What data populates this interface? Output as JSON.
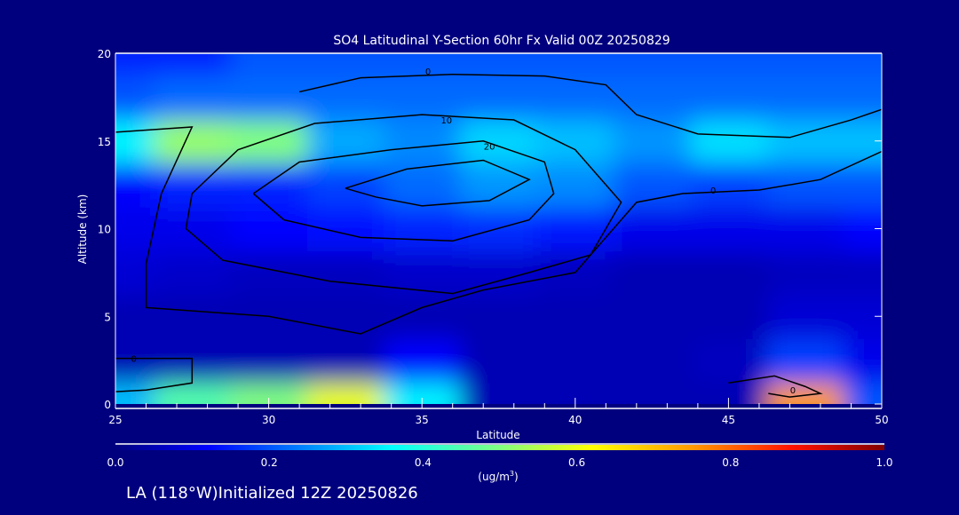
{
  "chart_data": {
    "type": "heatmap",
    "title": "SO4 Latitudinal Y-Section 60hr  Fx Valid 00Z 20250829",
    "xlabel": "Latitude",
    "ylabel": "Altitude (km)",
    "xlim": [
      25,
      50
    ],
    "ylim": [
      0,
      20
    ],
    "xticks": [
      "25",
      "30",
      "35",
      "40",
      "45",
      "50"
    ],
    "yticks": [
      "0",
      "5",
      "10",
      "15",
      "20"
    ],
    "x": [
      25,
      27.5,
      30,
      32.5,
      35,
      37.5,
      40,
      42.5,
      45,
      47.5,
      50
    ],
    "y": [
      0,
      2.5,
      5,
      7.5,
      10,
      12.5,
      15,
      17.5,
      20
    ],
    "z": [
      [
        0.3,
        0.45,
        0.5,
        0.6,
        0.35,
        0.05,
        0.05,
        0.05,
        0.05,
        0.75,
        0.2
      ],
      [
        0.05,
        0.05,
        0.05,
        0.05,
        0.12,
        0.05,
        0.05,
        0.05,
        0.06,
        0.18,
        0.1
      ],
      [
        0.05,
        0.05,
        0.05,
        0.05,
        0.05,
        0.05,
        0.05,
        0.05,
        0.05,
        0.08,
        0.08
      ],
      [
        0.08,
        0.07,
        0.06,
        0.06,
        0.07,
        0.07,
        0.06,
        0.05,
        0.05,
        0.06,
        0.06
      ],
      [
        0.1,
        0.1,
        0.12,
        0.13,
        0.15,
        0.16,
        0.14,
        0.1,
        0.1,
        0.1,
        0.12
      ],
      [
        0.12,
        0.15,
        0.15,
        0.18,
        0.22,
        0.26,
        0.25,
        0.2,
        0.18,
        0.2,
        0.2
      ],
      [
        0.35,
        0.52,
        0.5,
        0.28,
        0.25,
        0.32,
        0.3,
        0.26,
        0.33,
        0.3,
        0.3
      ],
      [
        0.2,
        0.22,
        0.22,
        0.22,
        0.22,
        0.22,
        0.22,
        0.22,
        0.22,
        0.22,
        0.22
      ],
      [
        0.15,
        0.15,
        0.2,
        0.2,
        0.2,
        0.2,
        0.2,
        0.2,
        0.2,
        0.2,
        0.2
      ]
    ],
    "colorbar": {
      "ticks": [
        "0.0",
        "0.2",
        "0.4",
        "0.6",
        "0.8",
        "1.0"
      ],
      "range": [
        0,
        1
      ],
      "units_prefix": "(ug/m",
      "units_sup": "3",
      "units_suffix": ")"
    },
    "contours": [
      {
        "label": "0",
        "label_at": [
          35.2,
          19.0
        ],
        "points": [
          [
            31,
            17.8
          ],
          [
            33,
            18.6
          ],
          [
            36,
            18.8
          ],
          [
            39,
            18.7
          ],
          [
            41,
            18.2
          ],
          [
            42,
            16.5
          ],
          [
            44,
            15.4
          ],
          [
            47,
            15.2
          ],
          [
            49,
            16.2
          ],
          [
            50,
            16.8
          ]
        ]
      },
      {
        "label": "0",
        "label_at": [
          44.5,
          12.2
        ],
        "points": [
          [
            50,
            14.4
          ],
          [
            48,
            12.8
          ],
          [
            46,
            12.2
          ],
          [
            43.5,
            12.0
          ],
          [
            42,
            11.5
          ],
          [
            41,
            9.5
          ],
          [
            40,
            7.5
          ],
          [
            37,
            6.5
          ],
          [
            35,
            5.5
          ],
          [
            33,
            4.0
          ],
          [
            30,
            5.0
          ],
          [
            26,
            5.5
          ],
          [
            26,
            8
          ],
          [
            26.5,
            12
          ],
          [
            27.5,
            15.8
          ],
          [
            25,
            15.5
          ]
        ]
      },
      {
        "label": "10",
        "label_at": [
          35.8,
          16.2
        ],
        "points": [
          [
            27.5,
            12
          ],
          [
            29,
            14.5
          ],
          [
            31.5,
            16
          ],
          [
            35,
            16.5
          ],
          [
            38,
            16.2
          ],
          [
            40,
            14.5
          ],
          [
            41.5,
            11.5
          ],
          [
            40.5,
            8.5
          ],
          [
            38.5,
            7.5
          ],
          [
            36,
            6.3
          ],
          [
            32,
            7.0
          ],
          [
            28.5,
            8.2
          ],
          [
            27.3,
            10
          ],
          [
            27.5,
            12
          ]
        ]
      },
      {
        "label": "20",
        "label_at": [
          37.2,
          14.7
        ],
        "points": [
          [
            29.5,
            12
          ],
          [
            31,
            13.8
          ],
          [
            34,
            14.5
          ],
          [
            37,
            15
          ],
          [
            39,
            13.8
          ],
          [
            39.3,
            12
          ],
          [
            38.5,
            10.5
          ],
          [
            36,
            9.3
          ],
          [
            33,
            9.5
          ],
          [
            30.5,
            10.5
          ],
          [
            29.5,
            12
          ]
        ]
      },
      {
        "label": "",
        "label_at": [
          0,
          0
        ],
        "points": [
          [
            32.5,
            12.3
          ],
          [
            34.5,
            13.4
          ],
          [
            37,
            13.9
          ],
          [
            38.5,
            12.8
          ],
          [
            37.2,
            11.6
          ],
          [
            35,
            11.3
          ],
          [
            33.5,
            11.8
          ],
          [
            32.5,
            12.3
          ]
        ]
      },
      {
        "label": "0",
        "label_at": [
          25.6,
          2.6
        ],
        "points": [
          [
            25,
            2.6
          ],
          [
            27.5,
            2.6
          ],
          [
            27.5,
            1.2
          ],
          [
            26,
            0.8
          ],
          [
            25,
            0.7
          ]
        ]
      },
      {
        "label": "0",
        "label_at": [
          47.1,
          0.8
        ],
        "points": [
          [
            45,
            1.2
          ],
          [
            46.5,
            1.6
          ],
          [
            47.5,
            1.0
          ],
          [
            48,
            0.6
          ],
          [
            47,
            0.4
          ],
          [
            46.3,
            0.6
          ]
        ]
      }
    ]
  },
  "footer": {
    "init_text": "LA (118°W)Initialized 12Z 20250826"
  }
}
